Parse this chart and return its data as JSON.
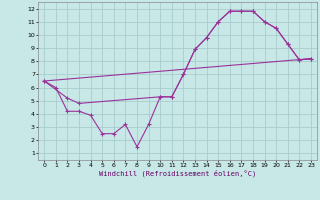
{
  "xlabel": "Windchill (Refroidissement éolien,°C)",
  "bg_color": "#c8e8e8",
  "grid_color": "#a8cccc",
  "line_color": "#993399",
  "xlim": [
    -0.5,
    23.5
  ],
  "ylim": [
    0.5,
    12.5
  ],
  "xticks": [
    0,
    1,
    2,
    3,
    4,
    5,
    6,
    7,
    8,
    9,
    10,
    11,
    12,
    13,
    14,
    15,
    16,
    17,
    18,
    19,
    20,
    21,
    22,
    23
  ],
  "yticks": [
    1,
    2,
    3,
    4,
    5,
    6,
    7,
    8,
    9,
    10,
    11,
    12
  ],
  "curve1_x": [
    0,
    1,
    2,
    3,
    4,
    5,
    6,
    7,
    8,
    9,
    10,
    11,
    12,
    13,
    14,
    15,
    16,
    17,
    18,
    19,
    20,
    21,
    22,
    23
  ],
  "curve1_y": [
    6.5,
    6.0,
    4.2,
    4.2,
    3.9,
    2.5,
    2.5,
    3.2,
    1.5,
    3.2,
    5.3,
    5.3,
    7.0,
    8.9,
    9.8,
    11.0,
    11.8,
    11.8,
    11.8,
    11.0,
    10.5,
    9.3,
    8.1,
    8.2
  ],
  "curve2_x": [
    0,
    2,
    3,
    10,
    11,
    12,
    13,
    14,
    15,
    16,
    17,
    18,
    19,
    20,
    21,
    22,
    23
  ],
  "curve2_y": [
    6.5,
    5.2,
    4.8,
    5.3,
    5.3,
    7.0,
    8.9,
    9.8,
    11.0,
    11.8,
    11.8,
    11.8,
    11.0,
    10.5,
    9.3,
    8.1,
    8.2
  ],
  "curve3_x": [
    0,
    23
  ],
  "curve3_y": [
    6.5,
    8.2
  ]
}
